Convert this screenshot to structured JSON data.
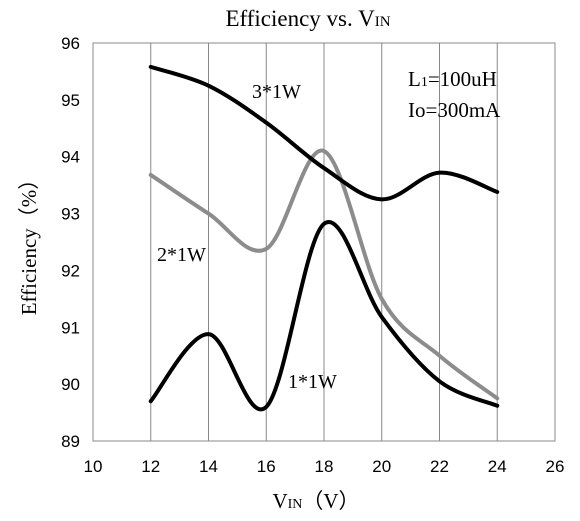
{
  "chart_data": {
    "type": "line",
    "title": "Efficiency vs. VIN",
    "title_main": "Efficiency vs. V",
    "title_sub": "IN",
    "xlabel_main": "V",
    "xlabel_sub": "IN",
    "xlabel_unit": "（V）",
    "ylabel": "Efficiency（%）",
    "xlim": [
      10,
      26
    ],
    "ylim": [
      89,
      96
    ],
    "xticks": [
      10,
      12,
      14,
      16,
      18,
      20,
      22,
      24,
      26
    ],
    "yticks": [
      89,
      90,
      91,
      92,
      93,
      94,
      95,
      96
    ],
    "grid": "vertical",
    "legend": "none",
    "annotations": {
      "l1_main": "L",
      "l1_sub": "1",
      "l1_rest": "=100uH",
      "io": "Io=300mA"
    },
    "series": [
      {
        "name": "3*1W",
        "color": "#000000",
        "x": [
          12,
          14,
          16,
          18,
          20,
          22,
          24
        ],
        "y": [
          95.58,
          95.25,
          94.6,
          93.8,
          93.25,
          93.72,
          93.38
        ]
      },
      {
        "name": "2*1W",
        "color": "#8c8c8c",
        "x": [
          12,
          14,
          16,
          18,
          20,
          22,
          24
        ],
        "y": [
          93.68,
          93.0,
          92.38,
          94.1,
          91.5,
          90.5,
          89.75
        ]
      },
      {
        "name": "1*1W",
        "color": "#000000",
        "x": [
          12,
          14,
          16,
          18,
          20,
          22,
          24
        ],
        "y": [
          89.7,
          90.88,
          89.6,
          92.82,
          91.18,
          90.05,
          89.62
        ]
      }
    ]
  }
}
